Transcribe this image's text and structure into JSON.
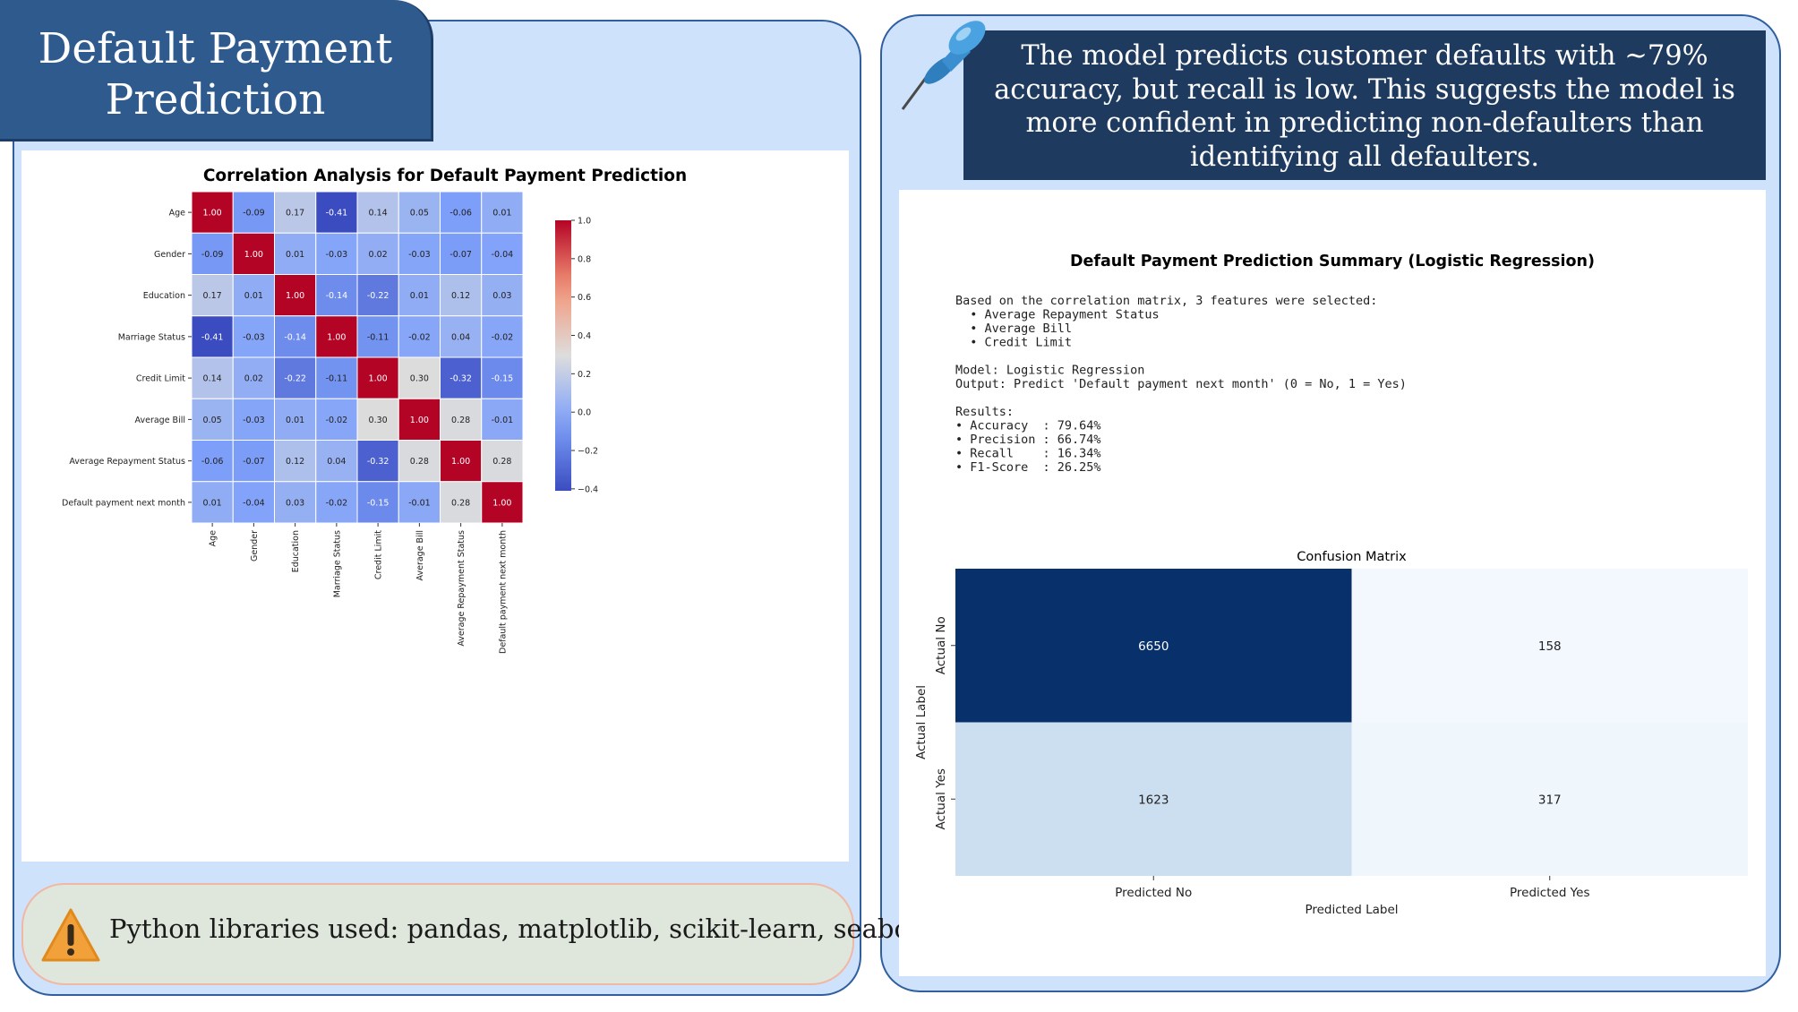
{
  "slide": {
    "title_line1": "Default Payment",
    "title_line2": "Prediction",
    "note": "The model predicts customer defaults with ~79% accuracy, but recall is low. This suggests the model is more confident in predicting non-defaulters than identifying all defaulters.",
    "libraries": "Python libraries used: pandas, matplotlib, scikit-learn, seaborn",
    "icons": {
      "pin": "pushpin-icon",
      "warning": "warning-icon"
    }
  },
  "summary": {
    "title": "Default Payment Prediction Summary (Logistic Regression)",
    "lines": [
      "Based on the correlation matrix, 3 features were selected:",
      "  • Average Repayment Status",
      "  • Average Bill",
      "  • Credit Limit",
      "",
      "Model: Logistic Regression",
      "Output: Predict 'Default payment next month' (0 = No, 1 = Yes)",
      "",
      "Results:",
      "• Accuracy  : 79.64%",
      "• Precision : 66.74%",
      "• Recall    : 16.34%",
      "• F1-Score  : 26.25%"
    ]
  },
  "chart_data": [
    {
      "type": "heatmap",
      "title": "Correlation Analysis for Default Payment Prediction",
      "colormap": "coolwarm",
      "labels": [
        "Age",
        "Gender",
        "Education",
        "Marriage Status",
        "Credit Limit",
        "Average Bill",
        "Average Repayment Status",
        "Default payment next month"
      ],
      "values": [
        [
          1.0,
          -0.09,
          0.17,
          -0.41,
          0.14,
          0.05,
          -0.06,
          0.01
        ],
        [
          -0.09,
          1.0,
          0.01,
          -0.03,
          0.02,
          -0.03,
          -0.07,
          -0.04
        ],
        [
          0.17,
          0.01,
          1.0,
          -0.14,
          -0.22,
          0.01,
          0.12,
          0.03
        ],
        [
          -0.41,
          -0.03,
          -0.14,
          1.0,
          -0.11,
          -0.02,
          0.04,
          -0.02
        ],
        [
          0.14,
          0.02,
          -0.22,
          -0.11,
          1.0,
          0.3,
          -0.32,
          -0.15
        ],
        [
          0.05,
          -0.03,
          0.01,
          -0.02,
          0.3,
          1.0,
          0.28,
          -0.01
        ],
        [
          -0.06,
          -0.07,
          0.12,
          0.04,
          -0.32,
          0.28,
          1.0,
          0.28
        ],
        [
          0.01,
          -0.04,
          0.03,
          -0.02,
          -0.15,
          -0.01,
          0.28,
          1.0
        ]
      ],
      "value_labels": [
        [
          "1.00",
          "-0.09",
          "0.17",
          "-0.41",
          "0.14",
          "0.05",
          "-0.06",
          "0.01"
        ],
        [
          "-0.09",
          "1.00",
          "0.01",
          "-0.03",
          "0.02",
          "-0.03",
          "-0.07",
          "-0.04"
        ],
        [
          "0.17",
          "0.01",
          "1.00",
          "-0.14",
          "-0.22",
          "0.01",
          "0.12",
          "0.03"
        ],
        [
          "-0.41",
          "-0.03",
          "-0.14",
          "1.00",
          "-0.11",
          "-0.02",
          "0.04",
          "-0.02"
        ],
        [
          "0.14",
          "0.02",
          "-0.22",
          "-0.11",
          "1.00",
          "0.30",
          "-0.32",
          "-0.15"
        ],
        [
          "0.05",
          "-0.03",
          "0.01",
          "-0.02",
          "0.30",
          "1.00",
          "0.28",
          "-0.01"
        ],
        [
          "-0.06",
          "-0.07",
          "0.12",
          "0.04",
          "-0.32",
          "0.28",
          "1.00",
          "0.28"
        ],
        [
          "0.01",
          "-0.04",
          "0.03",
          "-0.02",
          "-0.15",
          "-0.01",
          "0.28",
          "1.00"
        ]
      ],
      "colorbar": {
        "range": [
          -0.41,
          1.0
        ],
        "ticks": [
          1.0,
          0.8,
          0.6,
          0.4,
          0.2,
          0.0,
          -0.2,
          -0.4
        ],
        "tick_labels": [
          "1.0",
          "0.8",
          "0.6",
          "0.4",
          "0.2",
          "0.0",
          "−0.2",
          "−0.4"
        ]
      }
    },
    {
      "type": "heatmap",
      "title": "Confusion Matrix",
      "colormap": "Blues",
      "xlabel": "Predicted Label",
      "ylabel": "Actual Label",
      "x_categories": [
        "Predicted No",
        "Predicted Yes"
      ],
      "y_categories": [
        "Actual No",
        "Actual Yes"
      ],
      "values": [
        [
          6650,
          158
        ],
        [
          1623,
          317
        ]
      ],
      "value_labels": [
        [
          "6650",
          "158"
        ],
        [
          "1623",
          "317"
        ]
      ]
    }
  ]
}
